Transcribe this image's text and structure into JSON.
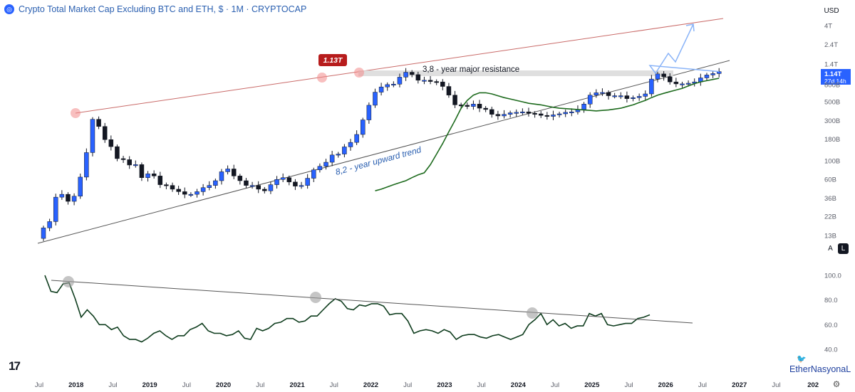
{
  "header": {
    "title": "Crypto Total Market Cap Excluding BTC and ETH, $ · 1M · CRYPTOCAP",
    "logo_icon": "coin-icon"
  },
  "currency_label": "USD",
  "price_badge": {
    "value": "1.14T",
    "countdown": "27d 14h",
    "color": "#2962ff"
  },
  "scale_buttons": {
    "auto": "A",
    "log": "L"
  },
  "branding": {
    "tv_logo": "17",
    "author": "EtherNasyonaL"
  },
  "colors": {
    "up": "#2962ff",
    "down": "#131722",
    "ma": "#1e6b1e",
    "resistance_trend": "#c0504d",
    "support_trend": "#555555",
    "projection": "#8ab4f8",
    "highlight": "#f28b8b"
  },
  "chart_data": [
    {
      "type": "candlestick",
      "title": "Crypto Total Market Cap Excluding BTC and ETH, $ · 1M · CRYPTOCAP",
      "y_scale": "log",
      "y_ticks": [
        "4T",
        "2.4T",
        "1.4T",
        "800B",
        "500B",
        "300B",
        "180B",
        "100B",
        "60B",
        "36B",
        "22B",
        "13B"
      ],
      "x_ticks": [
        "Jul",
        "2018",
        "Jul",
        "2019",
        "Jul",
        "2020",
        "Jul",
        "2021",
        "Jul",
        "2022",
        "Jul",
        "2023",
        "Jul",
        "2024",
        "Jul",
        "2025",
        "Jul",
        "2026",
        "Jul",
        "2027",
        "Jul",
        "202"
      ],
      "annotations": {
        "peak_label": "1.13T",
        "resistance_label": "3,8 - year major resistance",
        "trend_label": "8,2 - year upward trend"
      },
      "monthly_closes": [
        16,
        19,
        37,
        40,
        33,
        38,
        64,
        125,
        310,
        255,
        178,
        147,
        106,
        103,
        89,
        90,
        63,
        70,
        66,
        52,
        51,
        46,
        43,
        40,
        40,
        43,
        48,
        51,
        58,
        74,
        80,
        66,
        58,
        51,
        51,
        46,
        44,
        52,
        60,
        63,
        56,
        50,
        51,
        62,
        78,
        86,
        96,
        117,
        120,
        146,
        165,
        205,
        305,
        455,
        650,
        750,
        800,
        810,
        980,
        1120,
        1050,
        900,
        900,
        870,
        860,
        760,
        600,
        460,
        455,
        440,
        470,
        420,
        405,
        355,
        340,
        355,
        370,
        375,
        380,
        365,
        360,
        345,
        336,
        350,
        360,
        375,
        380,
        405,
        470,
        600,
        640,
        645,
        590,
        590,
        590,
        545,
        560,
        580,
        620,
        930,
        1070,
        990,
        860,
        815,
        815,
        830,
        860,
        960,
        1040,
        1080,
        1140
      ],
      "ma_line": [
        44,
        46,
        49,
        52,
        55,
        58,
        63,
        68,
        72,
        90,
        120,
        160,
        220,
        300,
        420,
        520,
        600,
        640,
        640,
        620,
        590,
        560,
        540,
        520,
        500,
        480,
        470,
        460,
        445,
        430,
        420,
        415,
        410,
        405,
        400,
        395,
        390,
        395,
        400,
        410,
        420,
        440,
        460,
        490,
        520,
        560,
        600,
        630,
        660,
        690,
        720,
        770,
        820,
        860,
        890,
        920,
        950
      ],
      "oscillator": {
        "y_ticks": [
          "100.0",
          "80.0",
          "60.0",
          "40.0"
        ],
        "values": [
          100,
          87,
          86,
          93,
          94,
          81,
          66,
          72,
          67,
          60,
          60,
          56,
          58,
          51,
          48,
          48,
          46,
          49,
          53,
          55,
          51,
          48,
          51,
          51,
          56,
          58,
          61,
          55,
          53,
          53,
          51,
          52,
          55,
          49,
          48,
          57,
          55,
          57,
          61,
          62,
          65,
          65,
          62,
          63,
          67,
          67,
          72,
          77,
          81,
          79,
          73,
          72,
          76,
          75,
          77,
          77,
          75,
          68,
          69,
          69,
          63,
          53,
          55,
          56,
          55,
          53,
          56,
          54,
          48,
          51,
          52,
          52,
          50,
          49,
          51,
          52,
          50,
          48,
          50,
          52,
          60,
          64,
          69,
          60,
          64,
          59,
          61,
          57,
          59,
          59,
          69,
          67,
          69,
          60,
          59,
          60,
          61,
          61,
          65,
          66,
          68
        ]
      }
    }
  ]
}
